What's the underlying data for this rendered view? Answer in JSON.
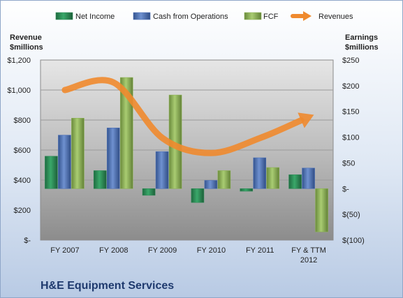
{
  "company": "H&E Equipment Services",
  "colors": {
    "net_income": "#2e8b57",
    "cash_from_operations": "#4f72b8",
    "fcf": "#8db255",
    "revenues": "#ef8a2e"
  },
  "chart_data": {
    "type": "bar",
    "categories": [
      "FY 2007",
      "FY 2008",
      "FY 2009",
      "FY 2010",
      "FY 2011",
      "FY & TTM 2012"
    ],
    "category_lines": [
      [
        "FY 2007"
      ],
      [
        "FY 2008"
      ],
      [
        "FY 2009"
      ],
      [
        "FY 2010"
      ],
      [
        "FY 2011"
      ],
      [
        "FY & TTM",
        "2012"
      ]
    ],
    "series": [
      {
        "name": "Net Income",
        "axis": "right",
        "kind": "bar",
        "values": [
          63,
          35,
          -13,
          -27,
          -5,
          27
        ]
      },
      {
        "name": "Cash from Operations",
        "axis": "right",
        "kind": "bar",
        "values": [
          104,
          118,
          72,
          16,
          60,
          40
        ]
      },
      {
        "name": "FCF",
        "axis": "right",
        "kind": "bar",
        "values": [
          137,
          216,
          182,
          35,
          41,
          -84
        ]
      },
      {
        "name": "Revenues",
        "axis": "left",
        "kind": "line",
        "values": [
          1000,
          1050,
          680,
          580,
          680,
          820
        ]
      }
    ],
    "left_axis": {
      "title_lines": [
        "Revenue",
        "$millions"
      ],
      "range": [
        0,
        1200
      ],
      "ticks": [
        0,
        200,
        400,
        600,
        800,
        1000,
        1200
      ],
      "tick_labels": [
        "$-",
        "$200",
        "$400",
        "$600",
        "$800",
        "$1,000",
        "$1,200"
      ]
    },
    "right_axis": {
      "title_lines": [
        "Earnings",
        "$millions"
      ],
      "range": [
        -100,
        250
      ],
      "ticks": [
        -100,
        -50,
        0,
        50,
        100,
        150,
        200,
        250
      ],
      "tick_labels": [
        "$(100)",
        "$(50)",
        "$-",
        "$50",
        "$100",
        "$150",
        "$200",
        "$250"
      ]
    },
    "legend_position": "top",
    "grid": true
  }
}
